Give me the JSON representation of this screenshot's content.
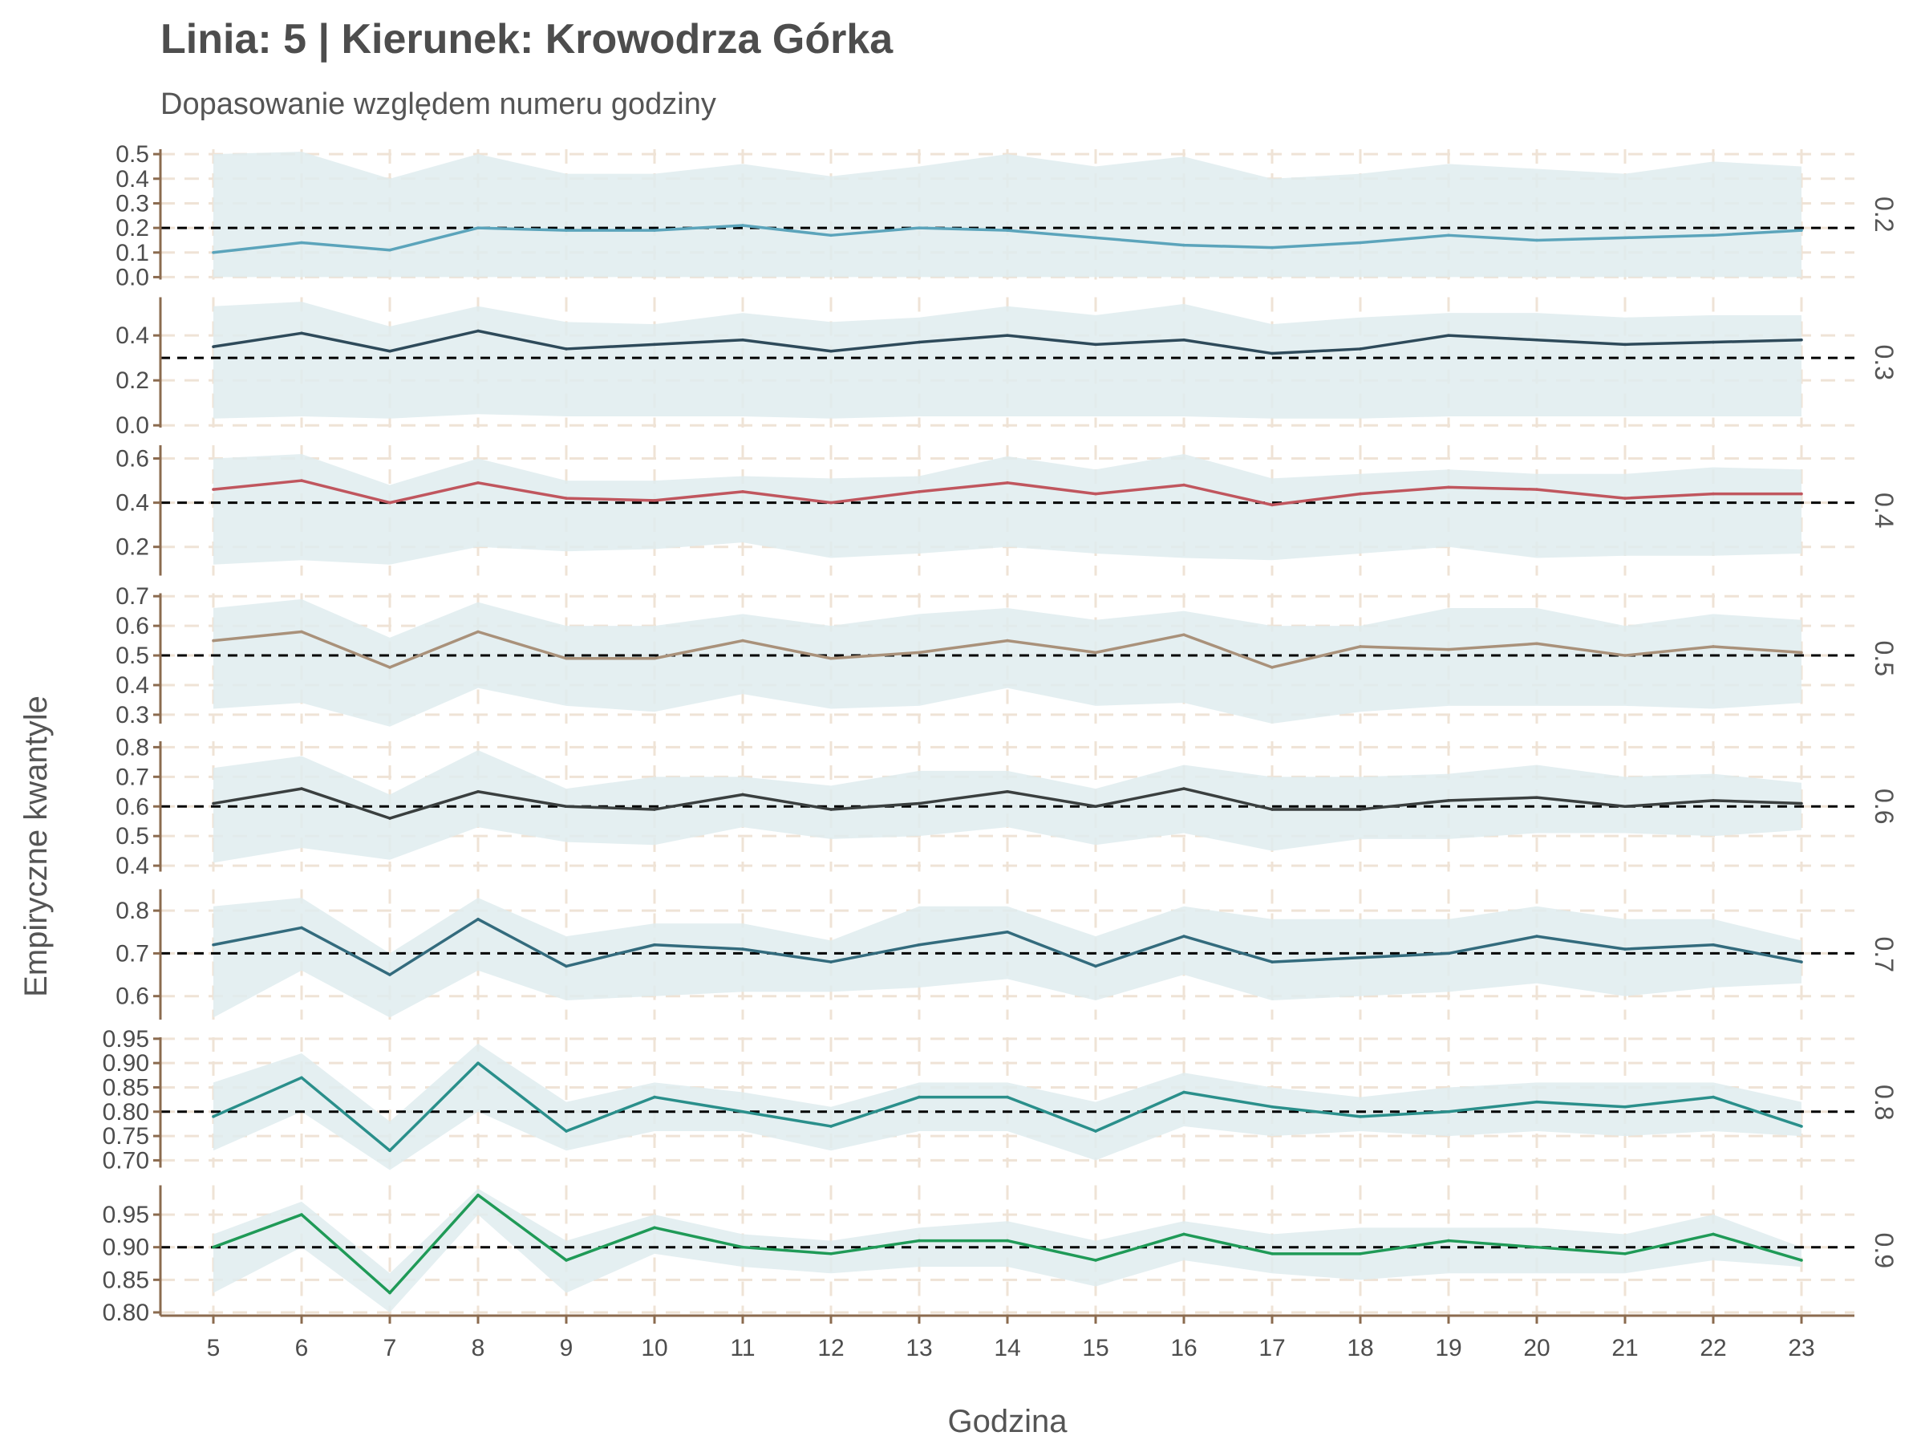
{
  "title": "Linia: 5 | Kierunek: Krowodrza Górka",
  "subtitle": "Dopasowanie względem numeru godziny",
  "xlabel": "Godzina",
  "ylabel": "Empiryczne kwantyle",
  "colors": {
    "band": "#dfecef",
    "grid": "#efe3d6",
    "axis": "#8b6b4f",
    "reference": "#000000",
    "text": "#4d4d4d"
  },
  "chart_data": {
    "type": "line",
    "facet_by": "quantile",
    "grid": true,
    "x": [
      5,
      6,
      7,
      8,
      9,
      10,
      11,
      12,
      13,
      14,
      15,
      16,
      17,
      18,
      19,
      20,
      21,
      22,
      23
    ],
    "panels": [
      {
        "facet_label": "0.2",
        "reference": 0.2,
        "color": "#5ba4bb",
        "ylim": [
          -0.01,
          0.52
        ],
        "yticks": [
          "0.0",
          "0.1",
          "0.2",
          "0.3",
          "0.4",
          "0.5"
        ],
        "values": [
          0.1,
          0.14,
          0.11,
          0.2,
          0.19,
          0.19,
          0.21,
          0.17,
          0.2,
          0.19,
          0.16,
          0.13,
          0.12,
          0.14,
          0.17,
          0.15,
          0.16,
          0.17,
          0.19
        ],
        "lower": [
          0.0,
          0.0,
          0.0,
          0.0,
          0.0,
          0.0,
          0.0,
          0.0,
          0.0,
          0.0,
          0.0,
          0.0,
          0.0,
          0.0,
          0.0,
          0.0,
          0.0,
          0.0,
          0.0
        ],
        "upper": [
          0.5,
          0.51,
          0.4,
          0.5,
          0.42,
          0.42,
          0.46,
          0.41,
          0.45,
          0.5,
          0.45,
          0.49,
          0.4,
          0.42,
          0.46,
          0.44,
          0.42,
          0.47,
          0.45
        ]
      },
      {
        "facet_label": "0.3",
        "reference": 0.3,
        "color": "#2e4a5a",
        "ylim": [
          -0.01,
          0.57
        ],
        "yticks": [
          "0.0",
          "0.2",
          "0.4"
        ],
        "values": [
          0.35,
          0.41,
          0.33,
          0.42,
          0.34,
          0.36,
          0.38,
          0.33,
          0.37,
          0.4,
          0.36,
          0.38,
          0.32,
          0.34,
          0.4,
          0.38,
          0.36,
          0.37,
          0.38
        ],
        "lower": [
          0.03,
          0.04,
          0.03,
          0.05,
          0.04,
          0.04,
          0.04,
          0.03,
          0.04,
          0.04,
          0.04,
          0.04,
          0.03,
          0.03,
          0.04,
          0.04,
          0.04,
          0.04,
          0.04
        ],
        "upper": [
          0.53,
          0.55,
          0.44,
          0.53,
          0.46,
          0.45,
          0.5,
          0.46,
          0.48,
          0.53,
          0.49,
          0.54,
          0.45,
          0.48,
          0.5,
          0.5,
          0.48,
          0.49,
          0.49
        ]
      },
      {
        "facet_label": "0.4",
        "reference": 0.4,
        "color": "#c0565e",
        "ylim": [
          0.07,
          0.66
        ],
        "yticks": [
          "0.2",
          "0.4",
          "0.6"
        ],
        "values": [
          0.46,
          0.5,
          0.4,
          0.49,
          0.42,
          0.41,
          0.45,
          0.4,
          0.45,
          0.49,
          0.44,
          0.48,
          0.39,
          0.44,
          0.47,
          0.46,
          0.42,
          0.44,
          0.44
        ],
        "lower": [
          0.12,
          0.14,
          0.12,
          0.2,
          0.18,
          0.19,
          0.22,
          0.15,
          0.17,
          0.2,
          0.17,
          0.15,
          0.14,
          0.17,
          0.2,
          0.15,
          0.16,
          0.16,
          0.17
        ],
        "upper": [
          0.6,
          0.62,
          0.48,
          0.6,
          0.5,
          0.5,
          0.52,
          0.51,
          0.52,
          0.61,
          0.55,
          0.62,
          0.51,
          0.53,
          0.55,
          0.53,
          0.53,
          0.56,
          0.55
        ]
      },
      {
        "facet_label": "0.5",
        "reference": 0.5,
        "color": "#a9917a",
        "ylim": [
          0.27,
          0.71
        ],
        "yticks": [
          "0.3",
          "0.4",
          "0.5",
          "0.6",
          "0.7"
        ],
        "values": [
          0.55,
          0.58,
          0.46,
          0.58,
          0.49,
          0.49,
          0.55,
          0.49,
          0.51,
          0.55,
          0.51,
          0.57,
          0.46,
          0.53,
          0.52,
          0.54,
          0.5,
          0.53,
          0.51
        ],
        "lower": [
          0.32,
          0.34,
          0.26,
          0.39,
          0.33,
          0.31,
          0.37,
          0.32,
          0.33,
          0.39,
          0.33,
          0.34,
          0.27,
          0.31,
          0.33,
          0.33,
          0.33,
          0.32,
          0.34
        ],
        "upper": [
          0.66,
          0.69,
          0.56,
          0.68,
          0.6,
          0.6,
          0.64,
          0.6,
          0.64,
          0.66,
          0.62,
          0.65,
          0.6,
          0.6,
          0.66,
          0.66,
          0.6,
          0.64,
          0.62
        ]
      },
      {
        "facet_label": "0.6",
        "reference": 0.6,
        "color": "#3a3f3f",
        "ylim": [
          0.38,
          0.82
        ],
        "yticks": [
          "0.4",
          "0.5",
          "0.6",
          "0.7",
          "0.8"
        ],
        "values": [
          0.61,
          0.66,
          0.56,
          0.65,
          0.6,
          0.59,
          0.64,
          0.59,
          0.61,
          0.65,
          0.6,
          0.66,
          0.59,
          0.59,
          0.62,
          0.63,
          0.6,
          0.62,
          0.61
        ],
        "lower": [
          0.41,
          0.46,
          0.42,
          0.53,
          0.48,
          0.47,
          0.53,
          0.49,
          0.5,
          0.53,
          0.47,
          0.51,
          0.45,
          0.49,
          0.49,
          0.51,
          0.51,
          0.5,
          0.52
        ],
        "upper": [
          0.73,
          0.77,
          0.64,
          0.79,
          0.66,
          0.7,
          0.7,
          0.67,
          0.72,
          0.72,
          0.66,
          0.74,
          0.7,
          0.7,
          0.71,
          0.74,
          0.7,
          0.71,
          0.68
        ]
      },
      {
        "facet_label": "0.7",
        "reference": 0.7,
        "color": "#336b7d",
        "ylim": [
          0.545,
          0.85
        ],
        "yticks": [
          "0.6",
          "0.7",
          "0.8"
        ],
        "values": [
          0.72,
          0.76,
          0.65,
          0.78,
          0.67,
          0.72,
          0.71,
          0.68,
          0.72,
          0.75,
          0.67,
          0.74,
          0.68,
          0.69,
          0.7,
          0.74,
          0.71,
          0.72,
          0.68
        ],
        "lower": [
          0.55,
          0.66,
          0.55,
          0.66,
          0.59,
          0.6,
          0.61,
          0.61,
          0.62,
          0.64,
          0.59,
          0.65,
          0.59,
          0.6,
          0.61,
          0.63,
          0.6,
          0.62,
          0.63
        ],
        "upper": [
          0.81,
          0.83,
          0.7,
          0.83,
          0.74,
          0.77,
          0.77,
          0.73,
          0.81,
          0.81,
          0.74,
          0.81,
          0.78,
          0.78,
          0.78,
          0.81,
          0.78,
          0.78,
          0.73
        ]
      },
      {
        "facet_label": "0.8",
        "reference": 0.8,
        "color": "#2a8f8b",
        "ylim": [
          0.685,
          0.953
        ],
        "yticks": [
          "0.70",
          "0.75",
          "0.80",
          "0.85",
          "0.90",
          "0.95"
        ],
        "values": [
          0.79,
          0.87,
          0.72,
          0.9,
          0.76,
          0.83,
          0.8,
          0.77,
          0.83,
          0.83,
          0.76,
          0.84,
          0.81,
          0.79,
          0.8,
          0.82,
          0.81,
          0.83,
          0.77
        ],
        "lower": [
          0.72,
          0.8,
          0.68,
          0.8,
          0.72,
          0.76,
          0.76,
          0.72,
          0.76,
          0.76,
          0.7,
          0.77,
          0.75,
          0.76,
          0.75,
          0.76,
          0.75,
          0.76,
          0.75
        ],
        "upper": [
          0.86,
          0.92,
          0.78,
          0.94,
          0.82,
          0.86,
          0.84,
          0.81,
          0.86,
          0.86,
          0.82,
          0.88,
          0.85,
          0.83,
          0.85,
          0.86,
          0.86,
          0.86,
          0.82
        ]
      },
      {
        "facet_label": "0.9",
        "reference": 0.9,
        "color": "#1f9a57",
        "ylim": [
          0.795,
          0.995
        ],
        "yticks": [
          "0.80",
          "0.85",
          "0.90",
          "0.95"
        ],
        "values": [
          0.9,
          0.95,
          0.83,
          0.98,
          0.88,
          0.93,
          0.9,
          0.89,
          0.91,
          0.91,
          0.88,
          0.92,
          0.89,
          0.89,
          0.91,
          0.9,
          0.89,
          0.92,
          0.88
        ],
        "lower": [
          0.83,
          0.9,
          0.8,
          0.95,
          0.83,
          0.89,
          0.87,
          0.86,
          0.87,
          0.87,
          0.84,
          0.88,
          0.86,
          0.85,
          0.86,
          0.86,
          0.86,
          0.88,
          0.87
        ],
        "upper": [
          0.92,
          0.97,
          0.86,
          0.99,
          0.91,
          0.95,
          0.92,
          0.91,
          0.93,
          0.94,
          0.91,
          0.94,
          0.92,
          0.93,
          0.93,
          0.93,
          0.92,
          0.95,
          0.9
        ]
      }
    ]
  }
}
